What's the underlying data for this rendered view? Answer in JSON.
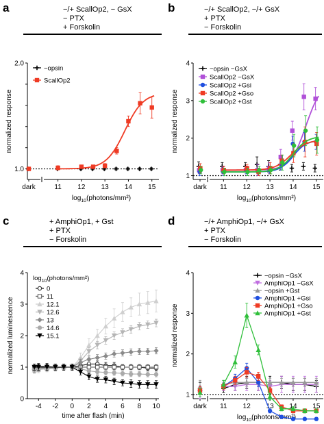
{
  "panels": [
    {
      "letter": "a",
      "conditions": [
        "−/+ ScallOp2, − GsX",
        "− PTX",
        "+ Forskolin"
      ],
      "xlabel": "log10(photons/mm²)",
      "ylabel": "normalized response",
      "legend_position": "top-left"
    },
    {
      "letter": "b",
      "conditions": [
        "−/+ ScallOp2, −/+ GsX",
        "+ PTX",
        "− Forskolin"
      ],
      "xlabel": "log10(photons/mm²)",
      "ylabel": "normalized response",
      "legend_position": "top-left"
    },
    {
      "letter": "c",
      "conditions": [
        "+ AmphiOp1, + Gst",
        "+ PTX",
        "− Forskolin"
      ],
      "xlabel": "time after flash (min)",
      "ylabel": "normalized luminescence",
      "legend_title": "log10(photons/mm²)",
      "legend_position": "top-left"
    },
    {
      "letter": "d",
      "conditions": [
        "−/+ AmphiOp1, −/+ GsX",
        "+ PTX",
        "− Forskolin"
      ],
      "xlabel": "log10(photons/mm²)",
      "ylabel": "normalized response",
      "legend_position": "top-right"
    }
  ],
  "chart_data": [
    {
      "panel": "a",
      "type": "scatter",
      "x_scale": "log10",
      "xlim": [
        10.4,
        15.3
      ],
      "ylim": [
        0.9,
        2.0
      ],
      "yticks": [
        1.0,
        1.2,
        1.4,
        1.6,
        1.8,
        2.0
      ],
      "yticklabels": [
        "1.0",
        "",
        "",
        "",
        "",
        "2.0"
      ],
      "xticks": [
        11,
        12,
        13,
        14,
        15
      ],
      "xticklabels": [
        "11",
        "12",
        "13",
        "14",
        "15"
      ],
      "dark_label": "dark",
      "reference_line": 1.0,
      "grid": false,
      "series": [
        {
          "name": "−opsin",
          "color": "#000000",
          "marker": "plus",
          "x": [
            "dark",
            11,
            12,
            12.5,
            13,
            13.5,
            14,
            14.5,
            15
          ],
          "y": [
            1.0,
            1.0,
            1.0,
            1.0,
            1.0,
            1.0,
            1.0,
            1.0,
            1.0
          ],
          "err": [
            0.01,
            0.01,
            0.01,
            0.01,
            0.01,
            0.01,
            0.01,
            0.01,
            0.01
          ]
        },
        {
          "name": "ScallOp2",
          "color": "#ef3b24",
          "marker": "square",
          "fit": "sigmoid",
          "x": [
            "dark",
            11,
            12,
            12.5,
            13,
            13.5,
            14,
            14.5,
            15
          ],
          "y": [
            1.0,
            1.01,
            1.02,
            1.02,
            1.03,
            1.17,
            1.45,
            1.62,
            1.58
          ],
          "err": [
            0.01,
            0.02,
            0.01,
            0.01,
            0.02,
            0.03,
            0.05,
            0.1,
            0.1
          ],
          "fit_params": {
            "bottom": 1.0,
            "top": 1.72,
            "ec50": 13.85,
            "slope": 1.1
          }
        }
      ]
    },
    {
      "panel": "b",
      "type": "scatter",
      "x_scale": "log10",
      "xlim": [
        10.4,
        15.3
      ],
      "ylim": [
        0.9,
        4.0
      ],
      "yticks": [
        1,
        2,
        3,
        4
      ],
      "yticklabels": [
        "1",
        "2",
        "3",
        "4"
      ],
      "xticks": [
        11,
        12,
        13,
        14,
        15
      ],
      "xticklabels": [
        "11",
        "12",
        "13",
        "14",
        "15"
      ],
      "dark_label": "dark",
      "reference_line": 1.0,
      "grid": false,
      "series": [
        {
          "name": "−opsin −GsX",
          "color": "#000000",
          "marker": "plus",
          "x": [
            "dark",
            11,
            12,
            12.5,
            13,
            13.5,
            14,
            14.5,
            15
          ],
          "y": [
            1.25,
            1.25,
            1.25,
            1.3,
            1.25,
            1.3,
            1.2,
            1.25,
            1.2
          ],
          "err": [
            0.12,
            0.1,
            0.1,
            0.2,
            0.15,
            0.15,
            0.1,
            0.1,
            0.1
          ]
        },
        {
          "name": "ScallOp2 −GsX",
          "color": "#b050d8",
          "marker": "square",
          "fit": "sigmoid",
          "x": [
            "dark",
            11,
            12,
            12.5,
            13,
            13.5,
            14,
            14.5,
            15
          ],
          "y": [
            1.15,
            1.15,
            1.15,
            1.15,
            1.2,
            1.5,
            2.2,
            3.1,
            3.05
          ],
          "err": [
            0.1,
            0.1,
            0.1,
            0.15,
            0.15,
            0.2,
            0.25,
            0.35,
            0.3
          ],
          "fit_params": {
            "bottom": 1.15,
            "top": 3.5,
            "ec50": 14.55,
            "slope": 1.3
          }
        },
        {
          "name": "ScallOp2 +Gsi",
          "color": "#1f4fe0",
          "marker": "circle",
          "fit": "sigmoid",
          "x": [
            "dark",
            11,
            12,
            12.5,
            13,
            13.5,
            14,
            14.5,
            15
          ],
          "y": [
            1.1,
            1.1,
            1.15,
            1.1,
            1.15,
            1.3,
            1.85,
            1.9,
            1.9
          ],
          "err": [
            0.1,
            0.1,
            0.1,
            0.1,
            0.1,
            0.15,
            0.2,
            0.25,
            0.2
          ],
          "fit_params": {
            "bottom": 1.1,
            "top": 1.95,
            "ec50": 14.0,
            "slope": 1.5
          }
        },
        {
          "name": "ScallOp2 +Gso",
          "color": "#ef3b24",
          "marker": "square",
          "fit": "sigmoid",
          "x": [
            "dark",
            11,
            12,
            12.5,
            13,
            13.5,
            14,
            14.5,
            15
          ],
          "y": [
            1.2,
            1.15,
            1.2,
            1.1,
            1.2,
            1.4,
            1.6,
            1.9,
            1.85
          ],
          "err": [
            0.12,
            0.1,
            0.1,
            0.1,
            0.15,
            0.15,
            0.25,
            0.4,
            0.3
          ],
          "fit_params": {
            "bottom": 1.15,
            "top": 1.95,
            "ec50": 13.9,
            "slope": 1.3
          }
        },
        {
          "name": "ScallOp2 +Gst",
          "color": "#2fbf3a",
          "marker": "circle",
          "fit": "sigmoid",
          "x": [
            "dark",
            11,
            12,
            12.5,
            13,
            13.5,
            14,
            14.5,
            15
          ],
          "y": [
            1.15,
            1.1,
            1.1,
            1.15,
            1.15,
            1.35,
            1.8,
            2.2,
            1.95
          ],
          "err": [
            0.1,
            0.1,
            0.1,
            0.1,
            0.1,
            0.2,
            0.3,
            0.4,
            0.35
          ],
          "fit_params": {
            "bottom": 1.1,
            "top": 2.05,
            "ec50": 14.0,
            "slope": 1.4
          }
        }
      ]
    },
    {
      "panel": "c",
      "type": "line",
      "xlim": [
        -5,
        10
      ],
      "ylim": [
        0,
        4
      ],
      "yticks": [
        0,
        1,
        2,
        3,
        4
      ],
      "yticklabels": [
        "0",
        "1",
        "2",
        "3",
        "4"
      ],
      "xticks": [
        -4,
        -2,
        0,
        2,
        4,
        6,
        8,
        10
      ],
      "xticklabels": [
        "-4",
        "-2",
        "0",
        "2",
        "4",
        "6",
        "8",
        "10"
      ],
      "grid": false,
      "x": [
        -4.5,
        -4,
        -3,
        -2,
        -1,
        0,
        1,
        2,
        3,
        4,
        5,
        6,
        7,
        8,
        9,
        10
      ],
      "series": [
        {
          "name": "0",
          "color": "#222222",
          "marker": "open-circle",
          "y": [
            1.0,
            1.02,
            1.02,
            1.0,
            1.0,
            1.0,
            1.05,
            1.1,
            1.1,
            1.05,
            1.05,
            1.0,
            1.0,
            1.0,
            0.97,
            0.97
          ],
          "err": [
            0.1,
            0.1,
            0.1,
            0.1,
            0.1,
            0.1,
            0.1,
            0.1,
            0.1,
            0.1,
            0.1,
            0.08,
            0.08,
            0.08,
            0.08,
            0.08
          ]
        },
        {
          "name": "11",
          "color": "#555555",
          "marker": "open-square",
          "y": [
            0.95,
            0.97,
            0.98,
            1.0,
            1.0,
            1.0,
            1.0,
            1.0,
            1.0,
            1.0,
            1.0,
            1.0,
            1.0,
            1.0,
            1.0,
            1.0
          ],
          "err": [
            0.08,
            0.08,
            0.08,
            0.08,
            0.08,
            0.08,
            0.08,
            0.08,
            0.08,
            0.08,
            0.08,
            0.08,
            0.08,
            0.08,
            0.08,
            0.08
          ]
        },
        {
          "name": "12.1",
          "color": "#cfcfcf",
          "marker": "triangle-up",
          "y": [
            0.9,
            0.92,
            0.95,
            0.97,
            1.0,
            1.0,
            1.3,
            1.7,
            2.0,
            2.3,
            2.55,
            2.75,
            2.9,
            3.0,
            3.05,
            3.1
          ],
          "err": [
            0.1,
            0.1,
            0.1,
            0.1,
            0.1,
            0.1,
            0.15,
            0.2,
            0.2,
            0.25,
            0.3,
            0.3,
            0.3,
            0.35,
            0.35,
            0.35
          ]
        },
        {
          "name": "12.6",
          "color": "#b5b5b5",
          "marker": "triangle-down",
          "y": [
            0.9,
            0.93,
            0.95,
            0.97,
            1.0,
            1.0,
            1.2,
            1.5,
            1.7,
            1.85,
            2.0,
            2.1,
            2.2,
            2.3,
            2.35,
            2.4
          ],
          "err": [
            0.08,
            0.08,
            0.08,
            0.08,
            0.08,
            0.08,
            0.1,
            0.12,
            0.12,
            0.12,
            0.12,
            0.12,
            0.12,
            0.12,
            0.12,
            0.12
          ]
        },
        {
          "name": "13",
          "color": "#8a8a8a",
          "marker": "diamond",
          "y": [
            0.92,
            0.95,
            0.97,
            0.98,
            1.0,
            1.0,
            1.15,
            1.25,
            1.3,
            1.35,
            1.42,
            1.45,
            1.48,
            1.5,
            1.5,
            1.52
          ],
          "err": [
            0.08,
            0.08,
            0.08,
            0.08,
            0.08,
            0.08,
            0.1,
            0.1,
            0.1,
            0.1,
            0.1,
            0.1,
            0.1,
            0.1,
            0.1,
            0.1
          ]
        },
        {
          "name": "14.6",
          "color": "#aaaaaa",
          "marker": "circle",
          "y": [
            0.95,
            0.97,
            0.98,
            1.0,
            1.0,
            1.0,
            0.95,
            0.88,
            0.85,
            0.83,
            0.82,
            0.8,
            0.78,
            0.78,
            0.77,
            0.77
          ],
          "err": [
            0.08,
            0.08,
            0.08,
            0.08,
            0.08,
            0.08,
            0.08,
            0.08,
            0.08,
            0.08,
            0.08,
            0.08,
            0.08,
            0.08,
            0.08,
            0.08
          ]
        },
        {
          "name": "15.1",
          "color": "#000000",
          "marker": "triangle-down-filled",
          "y": [
            1.0,
            1.0,
            1.0,
            1.0,
            1.0,
            1.0,
            0.85,
            0.7,
            0.62,
            0.6,
            0.55,
            0.5,
            0.48,
            0.45,
            0.45,
            0.45
          ],
          "err": [
            0.1,
            0.1,
            0.1,
            0.1,
            0.1,
            0.1,
            0.1,
            0.1,
            0.1,
            0.1,
            0.1,
            0.1,
            0.12,
            0.12,
            0.12,
            0.12
          ]
        }
      ]
    },
    {
      "panel": "d",
      "type": "line",
      "x_scale": "log10",
      "xlim": [
        10.4,
        15.3
      ],
      "ylim": [
        0.9,
        4.0
      ],
      "yticks": [
        1,
        2,
        3,
        4
      ],
      "yticklabels": [
        "1",
        "2",
        "3",
        "4"
      ],
      "xticks": [
        11,
        12,
        13,
        14,
        15
      ],
      "xticklabels": [
        "11",
        "12",
        "13",
        "14",
        "15"
      ],
      "dark_label": "dark",
      "reference_line": 1.0,
      "grid": false,
      "series": [
        {
          "name": "−opsin −GsX",
          "color": "#000000",
          "marker": "plus",
          "x": [
            "dark",
            11,
            11.5,
            12,
            12.5,
            13,
            13.5,
            14,
            14.5,
            15
          ],
          "y": [
            1.1,
            1.15,
            1.25,
            1.3,
            1.3,
            1.3,
            1.3,
            1.25,
            1.25,
            1.2
          ],
          "err": [
            0.2,
            0.1,
            0.15,
            0.15,
            0.2,
            0.15,
            0.15,
            0.15,
            0.15,
            0.15
          ]
        },
        {
          "name": "AmphiOp1 −GsX",
          "color": "#c06ee0",
          "marker": "triangle-down",
          "x": [
            "dark",
            11,
            11.5,
            12,
            12.5,
            13,
            13.5,
            14,
            14.5,
            15
          ],
          "y": [
            1.05,
            1.2,
            1.2,
            1.25,
            1.25,
            1.2,
            1.25,
            1.25,
            1.25,
            1.25
          ],
          "err": [
            0.15,
            0.1,
            0.1,
            0.15,
            0.15,
            0.15,
            0.2,
            0.2,
            0.2,
            0.2
          ]
        },
        {
          "name": "−opsin +Gst",
          "color": "#999999",
          "marker": "triangle-up",
          "x": [
            "dark",
            11,
            11.5,
            12,
            12.5,
            13,
            13.5,
            14,
            14.5,
            15
          ],
          "y": [
            1.2,
            1.25,
            1.3,
            1.3,
            1.3,
            1.3,
            1.3,
            1.3,
            1.3,
            1.3
          ],
          "err": [
            0.15,
            0.1,
            0.1,
            0.1,
            0.1,
            0.1,
            0.1,
            0.1,
            0.1,
            0.1
          ]
        },
        {
          "name": "AmphiOp1 +Gsi",
          "color": "#1f4fe0",
          "marker": "circle",
          "x": [
            "dark",
            11,
            11.5,
            12,
            12.5,
            13,
            13.5,
            14,
            14.5,
            15
          ],
          "y": [
            1.1,
            1.2,
            1.4,
            1.65,
            1.3,
            0.6,
            0.45,
            0.4,
            0.4,
            0.4
          ],
          "err": [
            0.1,
            0.08,
            0.1,
            0.12,
            0.1,
            0.05,
            0.04,
            0.04,
            0.04,
            0.04
          ]
        },
        {
          "name": "AmphiOp1 +Gso",
          "color": "#ef3b24",
          "marker": "square",
          "x": [
            "dark",
            11,
            11.5,
            12,
            12.5,
            13,
            13.5,
            14,
            14.5,
            15
          ],
          "y": [
            1.1,
            1.2,
            1.35,
            1.55,
            1.45,
            1.1,
            0.7,
            0.6,
            0.6,
            0.6
          ],
          "err": [
            0.1,
            0.08,
            0.1,
            0.12,
            0.1,
            0.08,
            0.05,
            0.05,
            0.05,
            0.05
          ]
        },
        {
          "name": "AmphiOp1 +Gst",
          "color": "#2fbf3a",
          "marker": "triangle-up",
          "x": [
            "dark",
            11,
            11.5,
            12,
            12.5,
            13,
            13.5,
            14,
            14.5,
            15
          ],
          "y": [
            1.05,
            1.25,
            1.8,
            2.95,
            2.1,
            0.95,
            0.65,
            0.65,
            0.6,
            0.6
          ],
          "err": [
            0.1,
            0.1,
            0.15,
            0.3,
            0.12,
            0.08,
            0.05,
            0.05,
            0.05,
            0.05
          ]
        }
      ]
    }
  ]
}
